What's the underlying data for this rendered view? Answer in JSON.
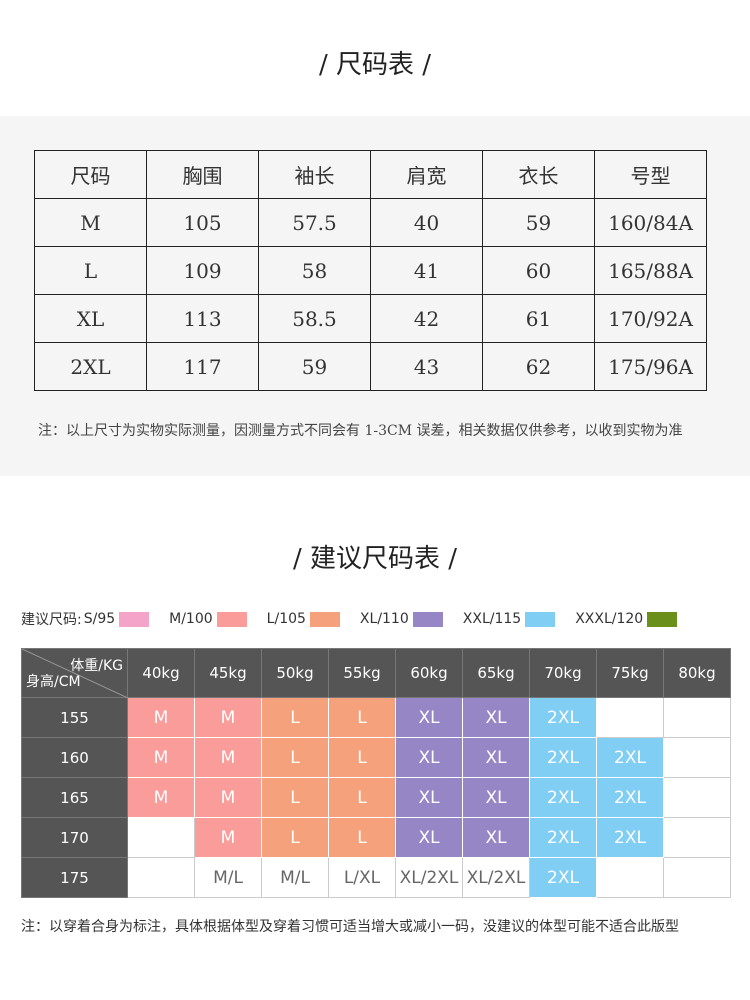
{
  "size_chart": {
    "title": "/ 尺码表 /",
    "header": [
      "尺码",
      "胸围",
      "袖长",
      "肩宽",
      "衣长",
      "号型"
    ],
    "rows": [
      [
        "M",
        "105",
        "57.5",
        "40",
        "59",
        "160/84A"
      ],
      [
        "L",
        "109",
        "58",
        "41",
        "60",
        "165/88A"
      ],
      [
        "XL",
        "113",
        "58.5",
        "42",
        "61",
        "170/92A"
      ],
      [
        "2XL",
        "117",
        "59",
        "43",
        "62",
        "175/96A"
      ]
    ],
    "note": "注：以上尺寸为实物实际测量，因测量方式不同会有 1-3CM 误差，相关数据仅供参考，以收到实物为准"
  },
  "recommend_chart": {
    "title": "/ 建议尺码表 /",
    "legend_label": "建议尺码:",
    "legend": [
      {
        "label": "S/95",
        "color": "#f4a3c9"
      },
      {
        "label": "M/100",
        "color": "#fa9c9a"
      },
      {
        "label": "L/105",
        "color": "#f4a17c"
      },
      {
        "label": "XL/110",
        "color": "#9786c5"
      },
      {
        "label": "XXL/115",
        "color": "#80cef3"
      },
      {
        "label": "XXXL/120",
        "color": "#6a8f1a"
      }
    ],
    "corner_top": "体重/KG",
    "corner_bottom": "身高/CM",
    "weights": [
      "40kg",
      "45kg",
      "50kg",
      "55kg",
      "60kg",
      "65kg",
      "70kg",
      "75kg",
      "80kg"
    ],
    "rows": [
      {
        "height": "155",
        "cells": [
          {
            "text": "M",
            "color": "#fa9c9a"
          },
          {
            "text": "M",
            "color": "#fa9c9a"
          },
          {
            "text": "L",
            "color": "#f4a17c"
          },
          {
            "text": "L",
            "color": "#f4a17c"
          },
          {
            "text": "XL",
            "color": "#9786c5"
          },
          {
            "text": "XL",
            "color": "#9786c5"
          },
          {
            "text": "2XL",
            "color": "#80cef3"
          },
          null,
          null
        ]
      },
      {
        "height": "160",
        "cells": [
          {
            "text": "M",
            "color": "#fa9c9a"
          },
          {
            "text": "M",
            "color": "#fa9c9a"
          },
          {
            "text": "L",
            "color": "#f4a17c"
          },
          {
            "text": "L",
            "color": "#f4a17c"
          },
          {
            "text": "XL",
            "color": "#9786c5"
          },
          {
            "text": "XL",
            "color": "#9786c5"
          },
          {
            "text": "2XL",
            "color": "#80cef3"
          },
          {
            "text": "2XL",
            "color": "#80cef3"
          },
          null
        ]
      },
      {
        "height": "165",
        "cells": [
          {
            "text": "M",
            "color": "#fa9c9a"
          },
          {
            "text": "M",
            "color": "#fa9c9a"
          },
          {
            "text": "L",
            "color": "#f4a17c"
          },
          {
            "text": "L",
            "color": "#f4a17c"
          },
          {
            "text": "XL",
            "color": "#9786c5"
          },
          {
            "text": "XL",
            "color": "#9786c5"
          },
          {
            "text": "2XL",
            "color": "#80cef3"
          },
          {
            "text": "2XL",
            "color": "#80cef3"
          },
          null
        ]
      },
      {
        "height": "170",
        "cells": [
          null,
          {
            "text": "M",
            "color": "#fa9c9a"
          },
          {
            "text": "L",
            "color": "#f4a17c"
          },
          {
            "text": "L",
            "color": "#f4a17c"
          },
          {
            "text": "XL",
            "color": "#9786c5"
          },
          {
            "text": "XL",
            "color": "#9786c5"
          },
          {
            "text": "2XL",
            "color": "#80cef3"
          },
          {
            "text": "2XL",
            "color": "#80cef3"
          },
          null
        ]
      },
      {
        "height": "175",
        "cells": [
          null,
          {
            "text": "M/L"
          },
          {
            "text": "M/L"
          },
          {
            "text": "L/XL"
          },
          {
            "text": "XL/2XL"
          },
          {
            "text": "XL/2XL"
          },
          {
            "text": "2XL",
            "color": "#80cef3"
          },
          null,
          null
        ]
      }
    ],
    "note": "注：以穿着合身为标注，具体根据体型及穿着习惯可适当增大或减小一码，没建议的体型可能不适合此版型"
  }
}
